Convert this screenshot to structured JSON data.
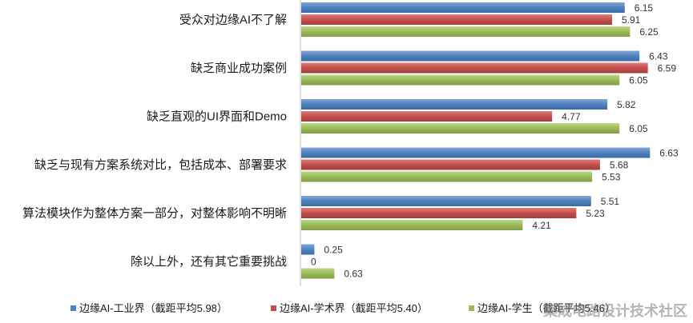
{
  "chart_data": {
    "type": "bar",
    "orientation": "horizontal",
    "categories": [
      "受众对边缘AI不了解",
      "缺乏商业成功案例",
      "缺乏直观的UI界面和Demo",
      "缺乏与现有方案系统对比，包括成本、部署要求",
      "算法模块作为整体方案一部分，对整体影响不明晰",
      "除以上外，还有其它重要挑战"
    ],
    "series": [
      {
        "name": "边缘AI-工业界（截距平均5.98）",
        "values": [
          6.15,
          6.43,
          5.82,
          6.63,
          5.51,
          0.25
        ],
        "color": "#4f81bd"
      },
      {
        "name": "边缘AI-学术界（截距平均5.40）",
        "values": [
          5.91,
          6.59,
          4.77,
          5.68,
          5.23,
          0
        ],
        "color": "#c0504d"
      },
      {
        "name": "边缘AI-学生（截距平均5.46）",
        "values": [
          6.25,
          6.05,
          6.05,
          5.53,
          4.21,
          0.63
        ],
        "color": "#9bbb59"
      }
    ],
    "xlim": [
      0,
      6.9
    ],
    "grid": false,
    "legend_position": "bottom"
  },
  "watermark": {
    "text": "集成电路设计技术社区"
  }
}
